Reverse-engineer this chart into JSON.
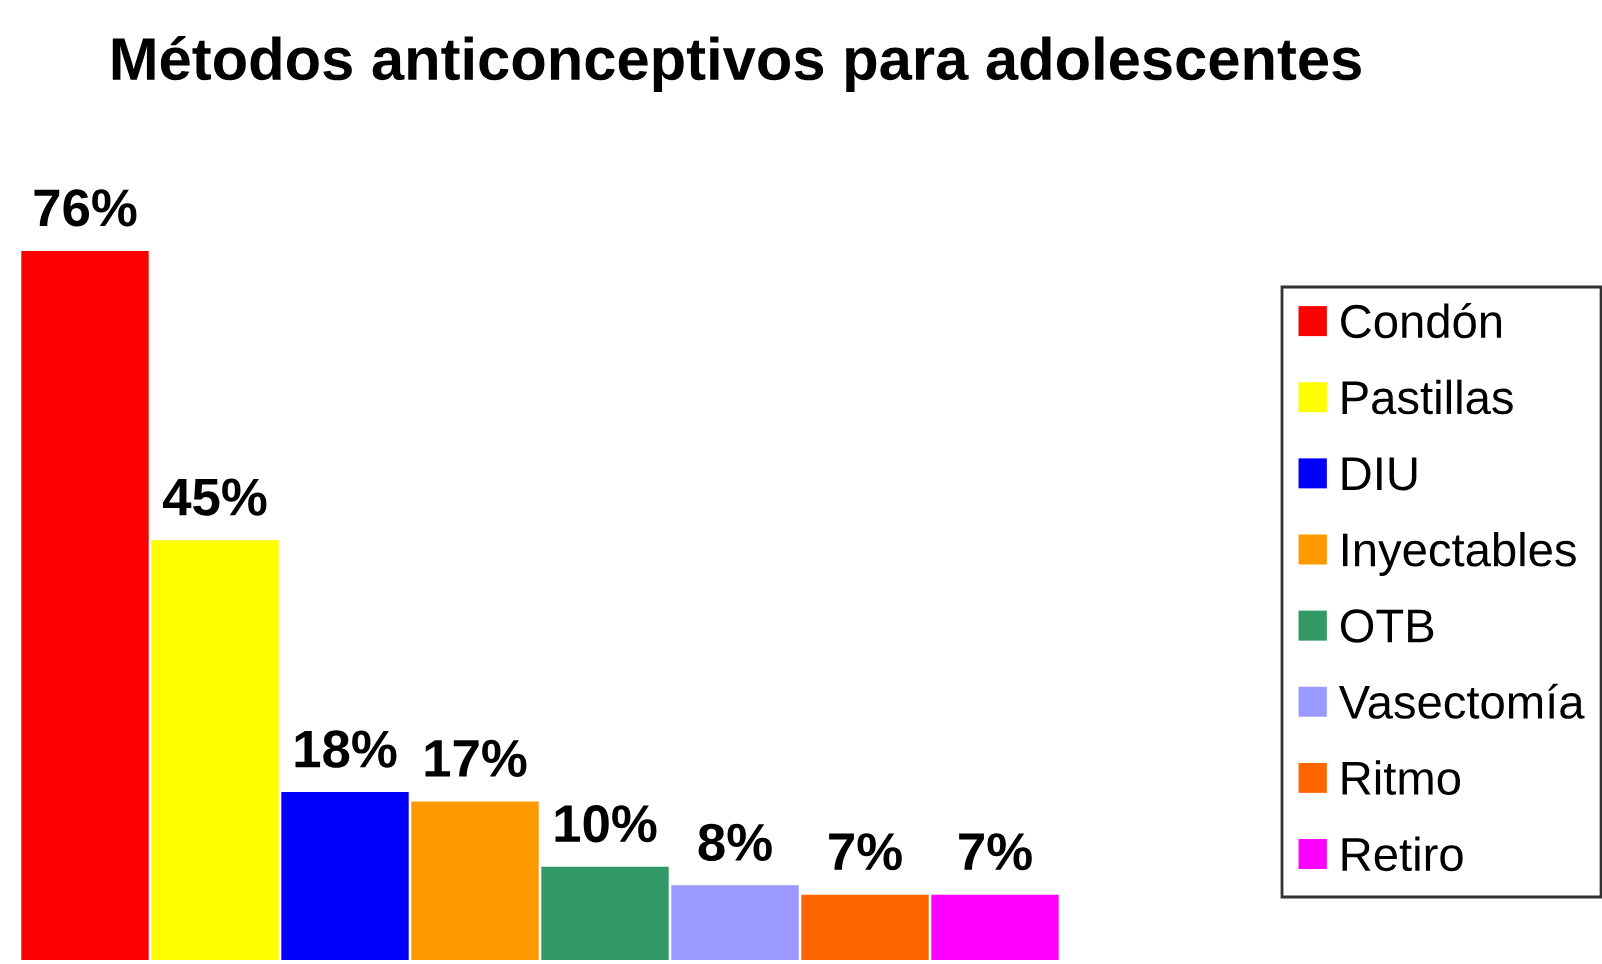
{
  "chart_data": {
    "type": "bar",
    "title": "Métodos anticonceptivos para adolescentes",
    "categories": [
      null
    ],
    "series": [
      {
        "name": "Condón",
        "color": "#ff0000",
        "values": [
          76
        ],
        "value_labels": [
          "76%"
        ]
      },
      {
        "name": "Pastillas",
        "color": "#ffff00",
        "values": [
          45
        ],
        "value_labels": [
          "45%"
        ]
      },
      {
        "name": "DIU",
        "color": "#0000ff",
        "values": [
          18
        ],
        "value_labels": [
          "18%"
        ]
      },
      {
        "name": "Inyectables",
        "color": "#ff9900",
        "values": [
          17
        ],
        "value_labels": [
          "17%"
        ]
      },
      {
        "name": "OTB",
        "color": "#339966",
        "values": [
          10
        ],
        "value_labels": [
          "10%"
        ]
      },
      {
        "name": "Vasectomía",
        "color": "#9999ff",
        "values": [
          8
        ],
        "value_labels": [
          "8%"
        ]
      },
      {
        "name": "Ritmo",
        "color": "#ff6600",
        "values": [
          7
        ],
        "value_labels": [
          "7%"
        ]
      },
      {
        "name": "Retiro",
        "color": "#ff00ff",
        "values": [
          7
        ],
        "value_labels": [
          "7%"
        ]
      }
    ],
    "legend": "right",
    "tick_labels": false
  }
}
